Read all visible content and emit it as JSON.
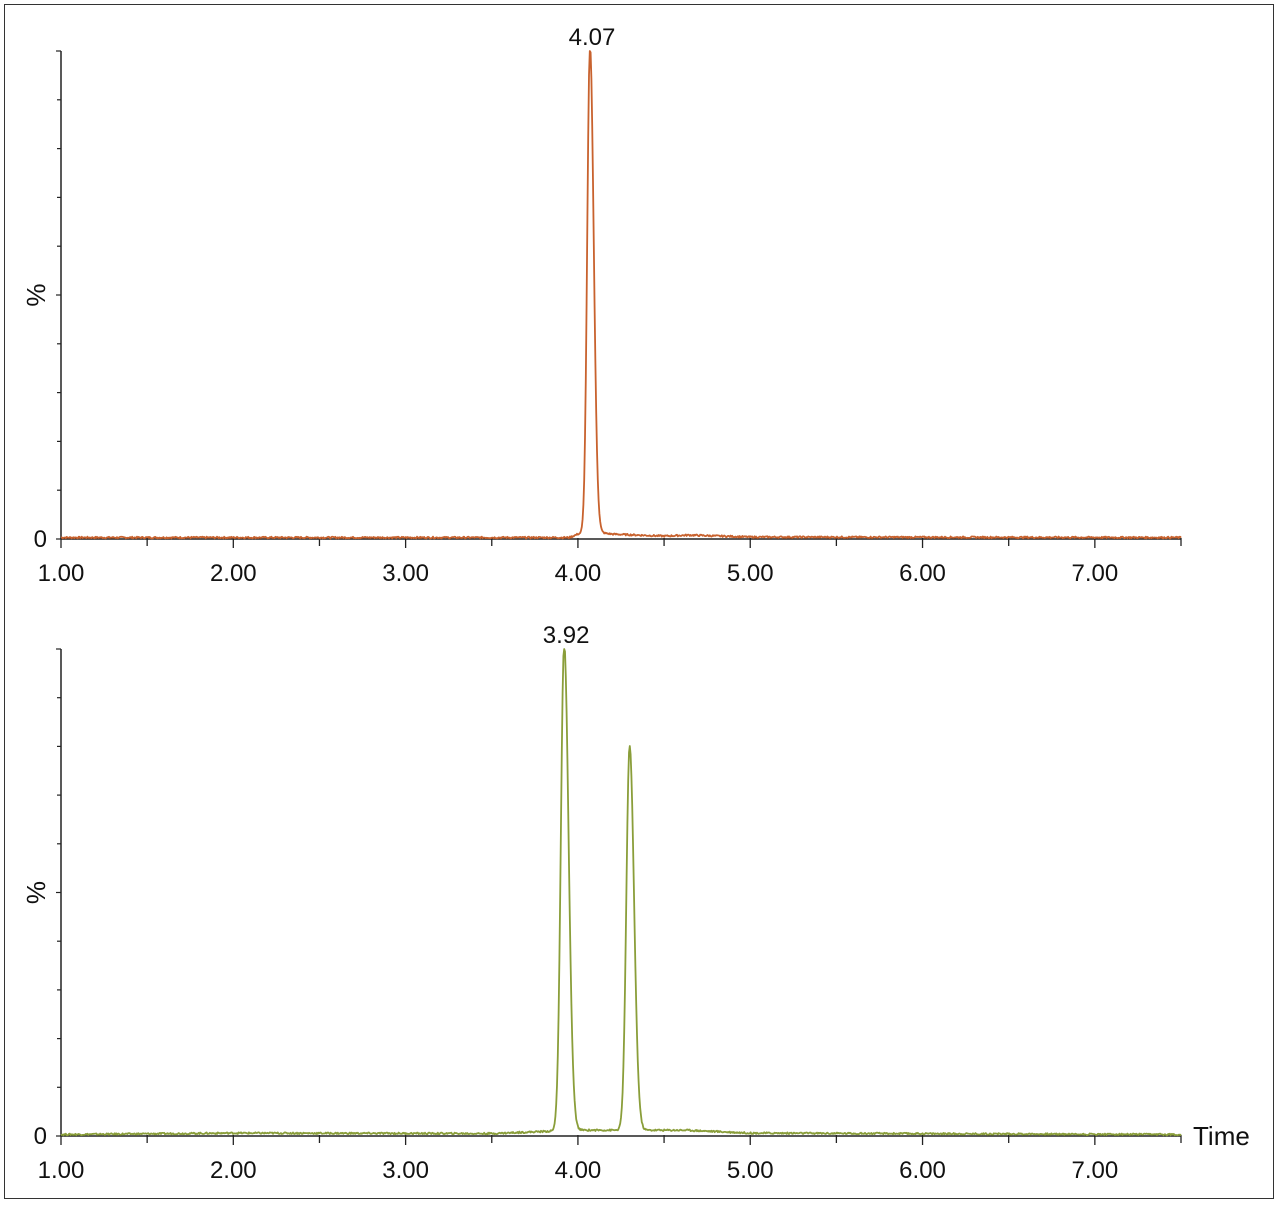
{
  "chart_data": [
    {
      "type": "line",
      "ylabel": "%",
      "xlabel": "",
      "xlim": [
        1.0,
        7.5
      ],
      "ylim": [
        0,
        100
      ],
      "y_tick_labels": [
        "0"
      ],
      "x_tick_labels": [
        "1.00",
        "2.00",
        "3.00",
        "4.00",
        "5.00",
        "6.00",
        "7.00"
      ],
      "x_ticks": [
        1.0,
        2.0,
        3.0,
        4.0,
        5.0,
        6.0,
        7.0
      ],
      "color": "#c8622e",
      "grid": false,
      "peaks": [
        {
          "rt": 4.07,
          "height": 100,
          "sigma": 0.016,
          "label": "4.07"
        }
      ],
      "series": [
        {
          "x": [
            1.0,
            3.5,
            3.95,
            4.0,
            4.03,
            4.05,
            4.06,
            4.07,
            4.08,
            4.09,
            4.11,
            4.15,
            4.2,
            4.5,
            4.65,
            5.0,
            7.5
          ],
          "y": [
            0.3,
            0.3,
            0.3,
            1,
            12,
            55,
            88,
            100,
            88,
            55,
            12,
            2,
            1,
            0.6,
            0.8,
            0.4,
            0.3
          ]
        }
      ]
    },
    {
      "type": "line",
      "ylabel": "%",
      "xlabel": "Time",
      "xlim": [
        1.0,
        7.5
      ],
      "ylim": [
        0,
        100
      ],
      "y_tick_labels": [
        "0"
      ],
      "x_tick_labels": [
        "1.00",
        "2.00",
        "3.00",
        "4.00",
        "5.00",
        "6.00",
        "7.00"
      ],
      "x_ticks": [
        1.0,
        2.0,
        3.0,
        4.0,
        5.0,
        6.0,
        7.0
      ],
      "color": "#8a9e3a",
      "grid": false,
      "peaks": [
        {
          "rt": 3.92,
          "height": 100,
          "sigma": 0.019,
          "label": "3.92"
        },
        {
          "rt": 4.3,
          "height": 79,
          "sigma": 0.019,
          "label": ""
        }
      ],
      "series": [
        {
          "x": [
            1.0,
            2.0,
            3.5,
            3.85,
            3.88,
            3.9,
            3.92,
            3.94,
            3.96,
            4.0,
            4.2,
            4.25,
            4.28,
            4.3,
            4.32,
            4.35,
            4.4,
            4.63,
            5.0,
            7.5
          ],
          "y": [
            0.3,
            0.6,
            0.5,
            1,
            30,
            75,
            100,
            75,
            30,
            3,
            2,
            12,
            60,
            79,
            60,
            12,
            2,
            1.2,
            0.6,
            0.3
          ]
        }
      ]
    }
  ]
}
